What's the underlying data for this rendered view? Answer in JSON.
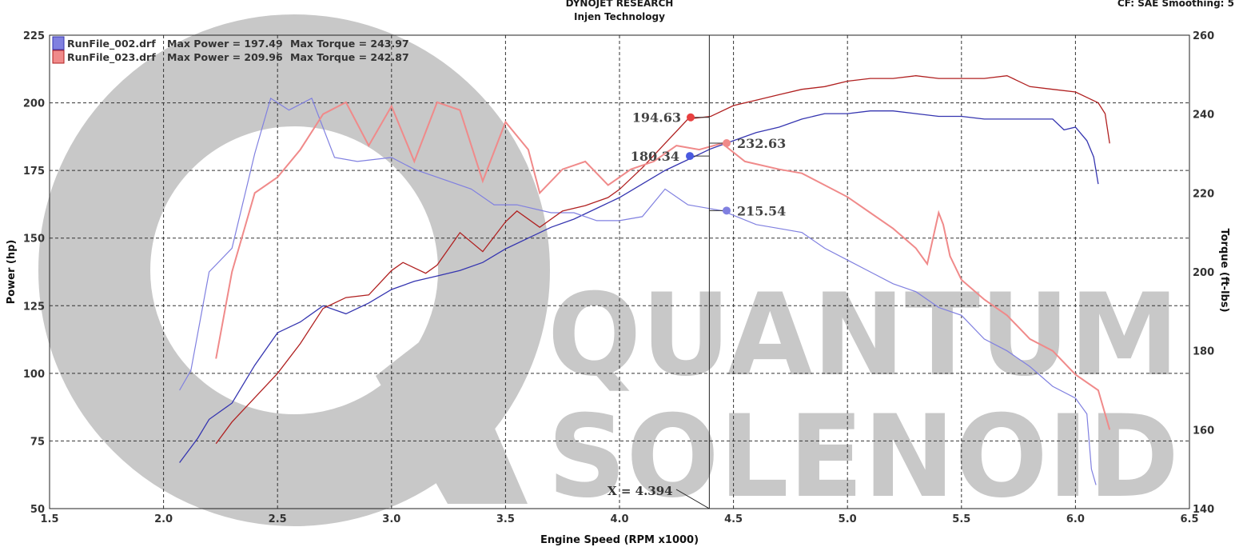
{
  "header": {
    "title": "DYNOJET RESEARCH",
    "subtitle": "Injen Technology",
    "settings": "CF: SAE  Smoothing: 5"
  },
  "watermark": {
    "line1": "QUANTUM",
    "line2": "SOLENOID"
  },
  "chart_data": {
    "type": "line",
    "xlabel": "Engine Speed (RPM x1000)",
    "ylabel": "Power (hp)",
    "y2label": "Torque (ft-lbs)",
    "xlim": [
      1.5,
      6.5
    ],
    "ylim": [
      50,
      225
    ],
    "y2lim": [
      140,
      260
    ],
    "x_ticks": [
      "1.5",
      "2.0",
      "2.5",
      "3.0",
      "3.5",
      "4.0",
      "4.5",
      "5.0",
      "5.5",
      "6.0",
      "6.5"
    ],
    "y_ticks": [
      "50",
      "75",
      "100",
      "125",
      "150",
      "175",
      "200",
      "225"
    ],
    "y2_ticks": [
      "140",
      "160",
      "180",
      "200",
      "220",
      "240",
      "260"
    ],
    "grid": true,
    "legend_position": "top-left",
    "cursor": {
      "x": 4.394,
      "label": "X = 4.394"
    },
    "series": [
      {
        "name": "RunFile_002.drf",
        "max_power_label": "Max Power = 197.49",
        "max_torque_label": "Max Torque = 243.97",
        "color": "#3535b0",
        "marker_color": "#4a5ae0",
        "power": [
          [
            2.07,
            67
          ],
          [
            2.15,
            76
          ],
          [
            2.2,
            83
          ],
          [
            2.3,
            89
          ],
          [
            2.4,
            103
          ],
          [
            2.5,
            115
          ],
          [
            2.6,
            119
          ],
          [
            2.7,
            125
          ],
          [
            2.8,
            122
          ],
          [
            2.9,
            126
          ],
          [
            3.0,
            131
          ],
          [
            3.1,
            134
          ],
          [
            3.2,
            136
          ],
          [
            3.3,
            138
          ],
          [
            3.4,
            141
          ],
          [
            3.5,
            146
          ],
          [
            3.6,
            150
          ],
          [
            3.7,
            154
          ],
          [
            3.8,
            157
          ],
          [
            3.9,
            161
          ],
          [
            4.0,
            165
          ],
          [
            4.1,
            170
          ],
          [
            4.2,
            175
          ],
          [
            4.3,
            179
          ],
          [
            4.4,
            183
          ],
          [
            4.5,
            186
          ],
          [
            4.6,
            189
          ],
          [
            4.7,
            191
          ],
          [
            4.8,
            194
          ],
          [
            4.9,
            196
          ],
          [
            5.0,
            196
          ],
          [
            5.1,
            197
          ],
          [
            5.2,
            197
          ],
          [
            5.3,
            196
          ],
          [
            5.4,
            195
          ],
          [
            5.5,
            195
          ],
          [
            5.6,
            194
          ],
          [
            5.7,
            194
          ],
          [
            5.8,
            194
          ],
          [
            5.9,
            194
          ],
          [
            5.95,
            190
          ],
          [
            6.0,
            191
          ],
          [
            6.05,
            186
          ],
          [
            6.08,
            180
          ],
          [
            6.1,
            170
          ]
        ],
        "torque": [
          [
            2.07,
            170
          ],
          [
            2.12,
            175
          ],
          [
            2.2,
            200
          ],
          [
            2.3,
            206
          ],
          [
            2.4,
            230
          ],
          [
            2.47,
            244
          ],
          [
            2.55,
            241
          ],
          [
            2.65,
            244
          ],
          [
            2.75,
            229
          ],
          [
            2.85,
            228
          ],
          [
            3.0,
            229
          ],
          [
            3.1,
            226
          ],
          [
            3.2,
            224
          ],
          [
            3.35,
            221
          ],
          [
            3.45,
            217
          ],
          [
            3.55,
            217
          ],
          [
            3.7,
            215
          ],
          [
            3.8,
            215
          ],
          [
            3.9,
            213
          ],
          [
            4.0,
            213
          ],
          [
            4.1,
            214
          ],
          [
            4.2,
            221
          ],
          [
            4.3,
            217
          ],
          [
            4.45,
            215.5
          ],
          [
            4.6,
            212
          ],
          [
            4.7,
            211
          ],
          [
            4.8,
            210
          ],
          [
            4.9,
            206
          ],
          [
            5.0,
            203
          ],
          [
            5.1,
            200
          ],
          [
            5.2,
            197
          ],
          [
            5.3,
            195
          ],
          [
            5.4,
            191
          ],
          [
            5.5,
            189
          ],
          [
            5.6,
            183
          ],
          [
            5.7,
            180
          ],
          [
            5.8,
            176
          ],
          [
            5.9,
            171
          ],
          [
            6.0,
            168
          ],
          [
            6.05,
            164
          ],
          [
            6.07,
            150
          ],
          [
            6.09,
            146
          ]
        ],
        "cursor_power": "180.34",
        "cursor_torque": "215.54"
      },
      {
        "name": "RunFile_023.drf",
        "max_power_label": "Max Power = 209.96",
        "max_torque_label": "Max Torque = 242.87",
        "color": "#b02020",
        "marker_color": "#e84040",
        "power": [
          [
            2.23,
            74
          ],
          [
            2.3,
            82
          ],
          [
            2.4,
            91
          ],
          [
            2.5,
            100
          ],
          [
            2.6,
            111
          ],
          [
            2.7,
            124
          ],
          [
            2.8,
            128
          ],
          [
            2.9,
            129
          ],
          [
            3.0,
            138
          ],
          [
            3.05,
            141
          ],
          [
            3.15,
            137
          ],
          [
            3.2,
            140
          ],
          [
            3.3,
            152
          ],
          [
            3.4,
            145
          ],
          [
            3.5,
            156
          ],
          [
            3.55,
            160
          ],
          [
            3.65,
            154
          ],
          [
            3.75,
            160
          ],
          [
            3.85,
            162
          ],
          [
            3.95,
            165
          ],
          [
            4.0,
            168
          ],
          [
            4.1,
            176
          ],
          [
            4.2,
            185
          ],
          [
            4.3,
            194
          ],
          [
            4.4,
            195
          ],
          [
            4.5,
            199
          ],
          [
            4.6,
            201
          ],
          [
            4.7,
            203
          ],
          [
            4.8,
            205
          ],
          [
            4.9,
            206
          ],
          [
            5.0,
            208
          ],
          [
            5.1,
            209
          ],
          [
            5.2,
            209
          ],
          [
            5.3,
            210
          ],
          [
            5.4,
            209
          ],
          [
            5.5,
            209
          ],
          [
            5.6,
            209
          ],
          [
            5.7,
            210
          ],
          [
            5.8,
            206
          ],
          [
            5.9,
            205
          ],
          [
            6.0,
            204
          ],
          [
            6.05,
            202
          ],
          [
            6.1,
            200
          ],
          [
            6.13,
            196
          ],
          [
            6.15,
            185
          ]
        ],
        "torque": [
          [
            2.23,
            178
          ],
          [
            2.3,
            200
          ],
          [
            2.4,
            220
          ],
          [
            2.5,
            224
          ],
          [
            2.6,
            231
          ],
          [
            2.7,
            240
          ],
          [
            2.8,
            243
          ],
          [
            2.9,
            232
          ],
          [
            3.0,
            242
          ],
          [
            3.1,
            228
          ],
          [
            3.2,
            243
          ],
          [
            3.3,
            241
          ],
          [
            3.4,
            223
          ],
          [
            3.5,
            238
          ],
          [
            3.6,
            231
          ],
          [
            3.65,
            220
          ],
          [
            3.75,
            226
          ],
          [
            3.85,
            228
          ],
          [
            3.95,
            222
          ],
          [
            4.05,
            226
          ],
          [
            4.15,
            228
          ],
          [
            4.25,
            232
          ],
          [
            4.35,
            231
          ],
          [
            4.45,
            232.6
          ],
          [
            4.55,
            228
          ],
          [
            4.7,
            226
          ],
          [
            4.8,
            225
          ],
          [
            4.9,
            222
          ],
          [
            5.0,
            219
          ],
          [
            5.1,
            215
          ],
          [
            5.2,
            211
          ],
          [
            5.3,
            206
          ],
          [
            5.35,
            202
          ],
          [
            5.4,
            215
          ],
          [
            5.42,
            212
          ],
          [
            5.45,
            204
          ],
          [
            5.5,
            198
          ],
          [
            5.6,
            193
          ],
          [
            5.7,
            189
          ],
          [
            5.8,
            183
          ],
          [
            5.9,
            180
          ],
          [
            6.0,
            174
          ],
          [
            6.1,
            170
          ],
          [
            6.15,
            160
          ]
        ],
        "cursor_power": "194.63",
        "cursor_torque": "232.63"
      }
    ]
  }
}
